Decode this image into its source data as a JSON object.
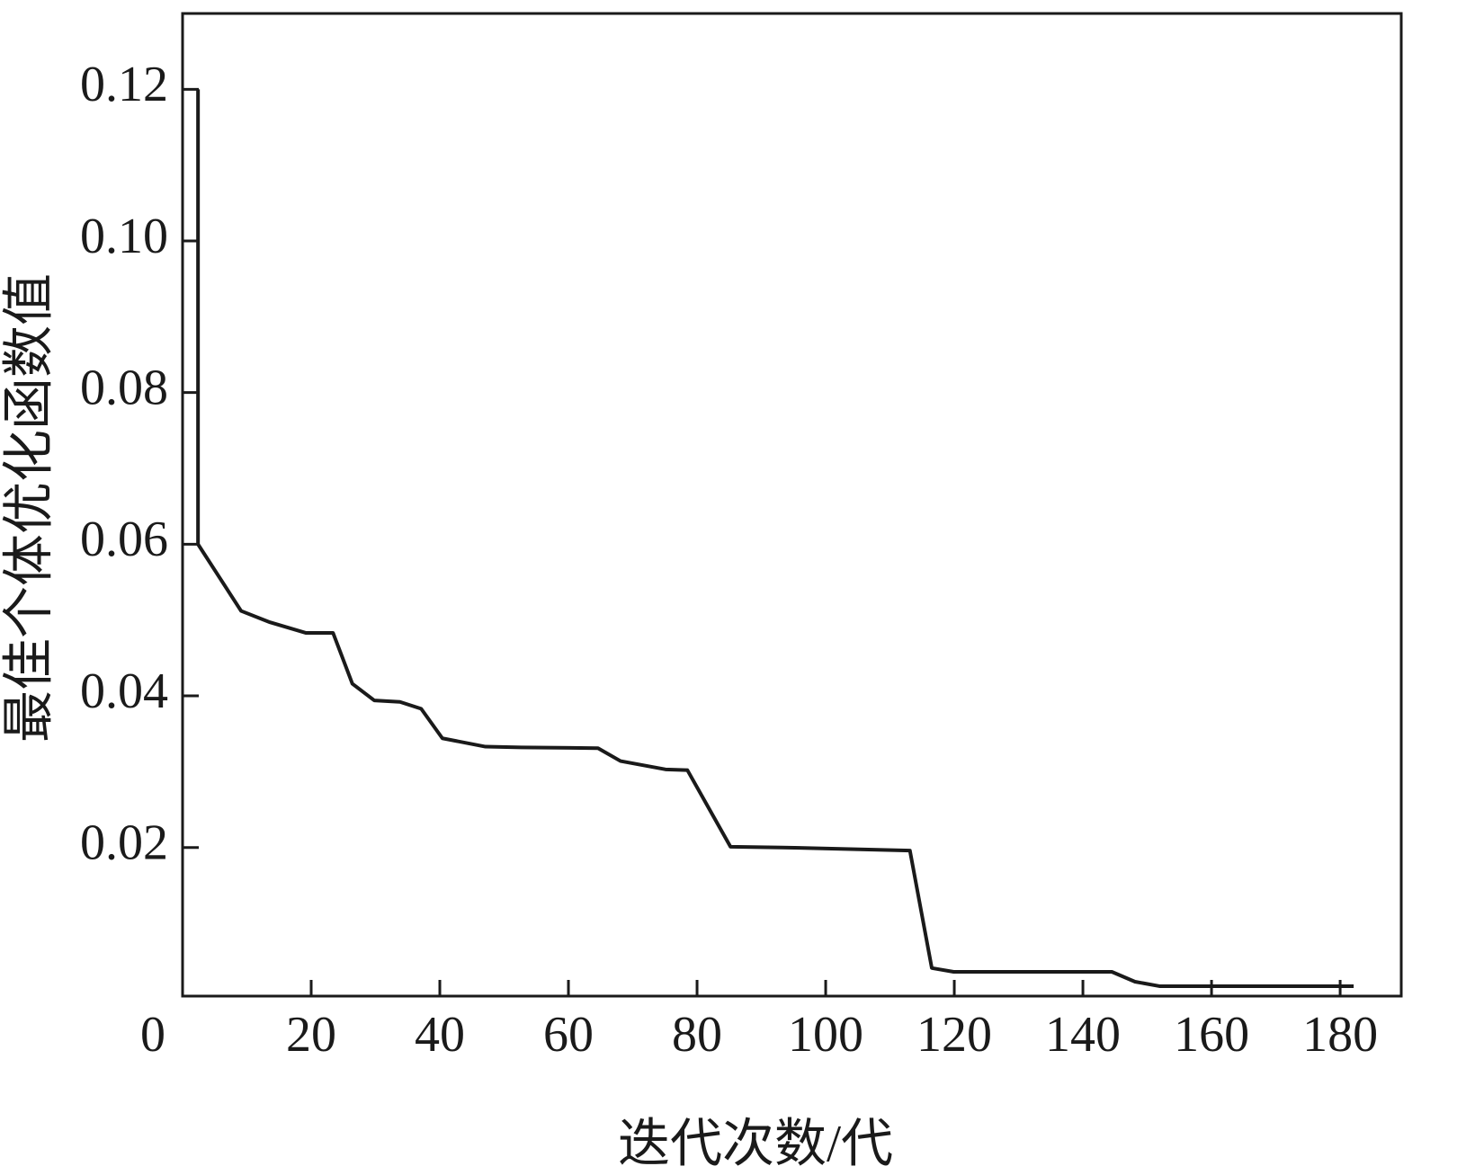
{
  "chart_data": {
    "type": "line",
    "x_label": "迭代次数/代",
    "y_label": "最佳个体优化函数值",
    "x": [
      2.4,
      2.4,
      9.1,
      13.6,
      19.2,
      23.4,
      26.4,
      29.8,
      33.8,
      37.1,
      40.4,
      47.1,
      52.7,
      64.6,
      68.1,
      75.1,
      78.5,
      85.2,
      93.3,
      103.1,
      113.1,
      116.5,
      119.9,
      144.5,
      148.1,
      152.0,
      182.1
    ],
    "series": [
      {
        "color": "#1a1a1a",
        "values": [
          0.12,
          0.06,
          0.0512,
          0.0497,
          0.0483,
          0.0483,
          0.0416,
          0.0394,
          0.0392,
          0.0383,
          0.0344,
          0.0333,
          0.0332,
          0.0331,
          0.0314,
          0.0303,
          0.0302,
          0.0201,
          0.02,
          0.0198,
          0.0196,
          0.0041,
          0.0036,
          0.0036,
          0.0023,
          0.0017,
          0.0017
        ]
      }
    ],
    "xlim": [
      0,
      189.5
    ],
    "ylim": [
      0.0004,
      0.13
    ],
    "xticks": [
      0,
      20,
      40,
      60,
      80,
      100,
      120,
      140,
      160,
      180
    ],
    "yticks": [
      0.02,
      0.04,
      0.06,
      0.08,
      {
        "value": 0.1,
        "label": "0.10"
      },
      0.12
    ]
  }
}
